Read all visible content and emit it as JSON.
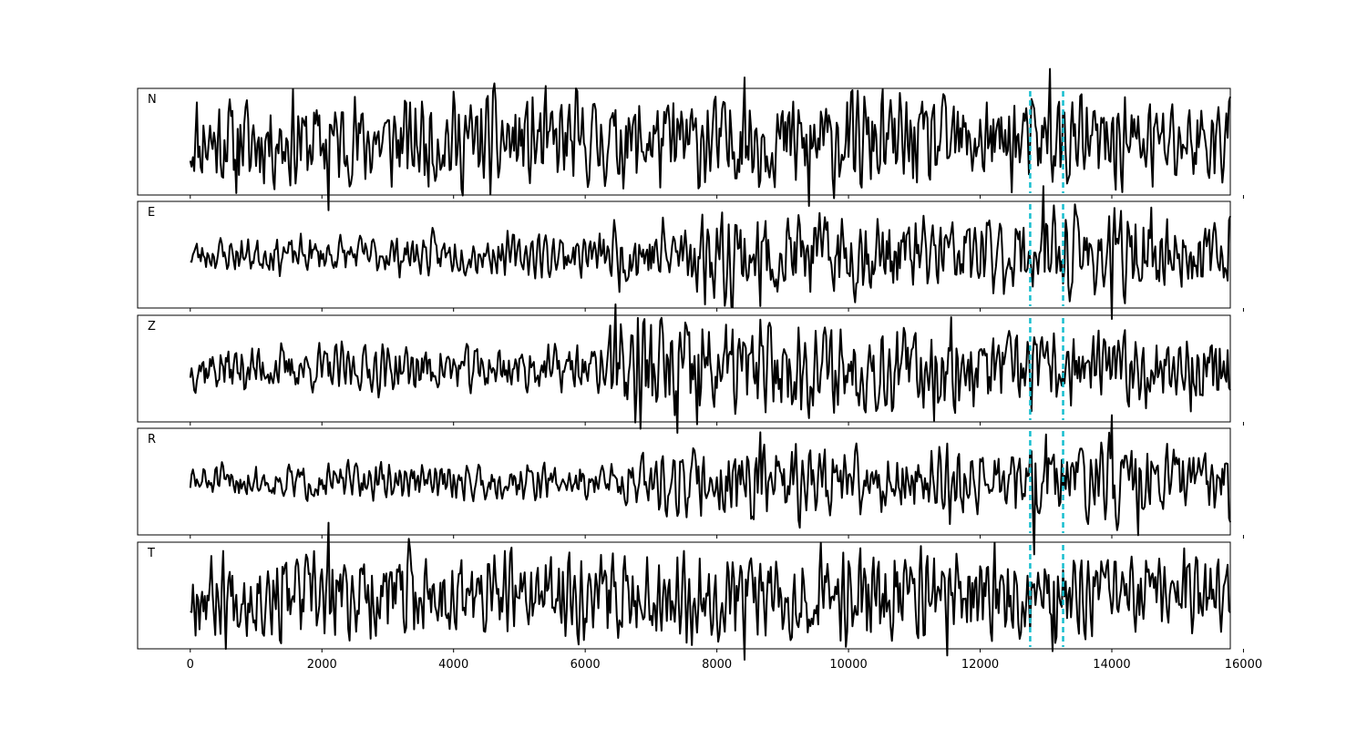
{
  "chart_data": {
    "type": "line",
    "title": "",
    "xlabel": "",
    "ylabel": "",
    "xlim": [
      -800,
      15800
    ],
    "x_ticks": [
      0,
      2000,
      4000,
      6000,
      8000,
      10000,
      12000,
      14000,
      16000
    ],
    "x_tick_labels": [
      "0",
      "2000",
      "4000",
      "6000",
      "8000",
      "10000",
      "12000",
      "14000",
      "16000"
    ],
    "sample_count": 15800,
    "grid": false,
    "legend": "none",
    "line_color": "#000000",
    "marker_color": "#17becf",
    "vertical_markers": [
      12760,
      13260
    ],
    "panels": [
      {
        "label": "N",
        "seed": 11,
        "env": [
          [
            0,
            1.0
          ],
          [
            6000,
            1.0
          ],
          [
            9000,
            1.05
          ],
          [
            12500,
            1.0
          ],
          [
            15800,
            0.95
          ]
        ],
        "lowpass": 0.45,
        "end_value": 1.05,
        "spikes": [
          [
            700,
            -1.2
          ],
          [
            2100,
            -1.6
          ],
          [
            8420,
            1.5
          ],
          [
            9400,
            -1.5
          ],
          [
            13050,
            1.7
          ]
        ]
      },
      {
        "label": "E",
        "seed": 23,
        "env": [
          [
            0,
            0.35
          ],
          [
            6200,
            0.45
          ],
          [
            6500,
            0.7
          ],
          [
            7000,
            0.75
          ],
          [
            8400,
            1.0
          ],
          [
            11000,
            0.85
          ],
          [
            12500,
            0.8
          ],
          [
            14000,
            0.95
          ],
          [
            15800,
            0.6
          ]
        ],
        "lowpass": 0.55,
        "end_value": 0.9,
        "spikes": [
          [
            12950,
            1.6
          ],
          [
            14000,
            -1.5
          ],
          [
            13950,
            0.9
          ],
          [
            14600,
            1.1
          ],
          [
            8650,
            -1.2
          ]
        ]
      },
      {
        "label": "Z",
        "seed": 37,
        "env": [
          [
            0,
            0.5
          ],
          [
            6300,
            0.5
          ],
          [
            6450,
            1.3
          ],
          [
            7300,
            1.2
          ],
          [
            9500,
            0.95
          ],
          [
            11500,
            0.95
          ],
          [
            13000,
            0.75
          ],
          [
            15800,
            0.75
          ]
        ],
        "lowpass": 0.5,
        "end_value": -0.5,
        "spikes": [
          [
            6450,
            1.5
          ],
          [
            7400,
            -1.5
          ],
          [
            7700,
            -1.3
          ],
          [
            11550,
            1.2
          ],
          [
            15200,
            -1.0
          ]
        ]
      },
      {
        "label": "R",
        "seed": 51,
        "env": [
          [
            0,
            0.35
          ],
          [
            6500,
            0.4
          ],
          [
            7000,
            0.6
          ],
          [
            8500,
            0.9
          ],
          [
            10000,
            0.7
          ],
          [
            12500,
            0.75
          ],
          [
            14000,
            0.9
          ],
          [
            15800,
            0.65
          ]
        ],
        "lowpass": 0.55,
        "end_value": -0.95,
        "spikes": [
          [
            8650,
            1.15
          ],
          [
            12820,
            -1.7
          ],
          [
            13000,
            1.1
          ],
          [
            14000,
            1.55
          ],
          [
            14400,
            -1.25
          ]
        ]
      },
      {
        "label": "T",
        "seed": 67,
        "env": [
          [
            0,
            0.9
          ],
          [
            2000,
            1.0
          ],
          [
            6000,
            0.9
          ],
          [
            9000,
            1.0
          ],
          [
            12000,
            0.9
          ],
          [
            15800,
            0.8
          ]
        ],
        "lowpass": 0.45,
        "end_value": -0.4,
        "spikes": [
          [
            2100,
            1.7
          ],
          [
            8420,
            -1.5
          ],
          [
            11500,
            -1.4
          ],
          [
            13100,
            -1.3
          ],
          [
            15100,
            1.1
          ]
        ]
      }
    ]
  }
}
